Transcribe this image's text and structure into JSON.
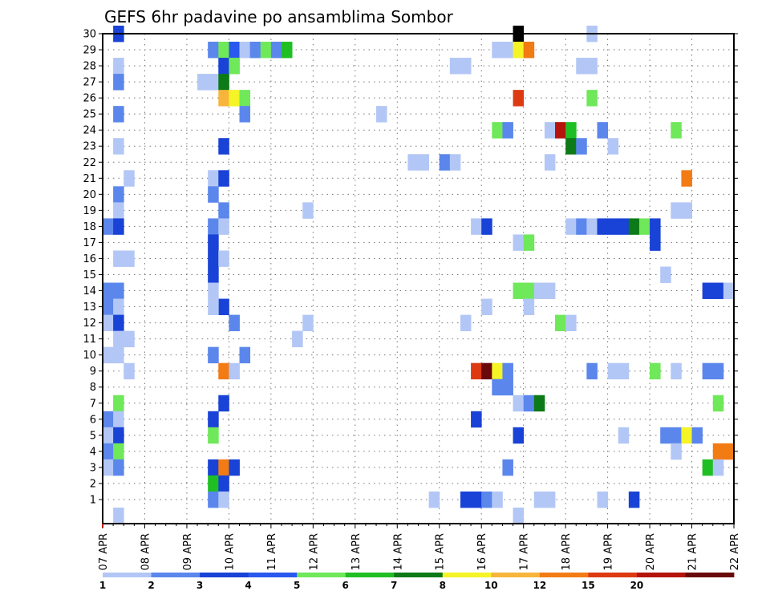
{
  "chart_data": {
    "type": "heatmap",
    "title": "GEFS 6hr padavine po ansamblima Sombor",
    "x_ticks": [
      "07 APR",
      "08 APR",
      "09 APR",
      "10 APR",
      "11 APR",
      "12 APR",
      "13 APR",
      "14 APR",
      "15 APR",
      "16 APR",
      "17 APR",
      "18 APR",
      "19 APR",
      "20 APR",
      "21 APR",
      "22 APR"
    ],
    "xlim": [
      "07 APR 00",
      "22 APR 00"
    ],
    "x_step": "6hr",
    "y_ticks": [
      1,
      2,
      3,
      4,
      5,
      6,
      7,
      8,
      9,
      10,
      11,
      12,
      13,
      14,
      15,
      16,
      17,
      18,
      19,
      20,
      21,
      22,
      23,
      24,
      25,
      26,
      27,
      28,
      29,
      30
    ],
    "ylim": [
      0,
      30
    ],
    "grid": true,
    "colorbar": {
      "labels": [
        "1",
        "2",
        "3",
        "4",
        "5",
        "6",
        "7",
        "8",
        "10",
        "12",
        "15",
        "20"
      ],
      "colors": [
        "#b3c7f6",
        "#5b87ec",
        "#1942d6",
        "#2a58ee",
        "#6fe85a",
        "#1fbf24",
        "#0c7a16",
        "#f4f427",
        "#f7b53b",
        "#f27b14",
        "#dd3a12",
        "#b4140c",
        "#6a0909"
      ]
    },
    "cells_format": "[x_start_day_offset, ensemble_member, color_class]",
    "cells": [
      [
        0.25,
        30,
        3
      ],
      [
        9.75,
        30,
        14
      ],
      [
        11.5,
        30,
        1
      ],
      [
        2.5,
        29,
        2
      ],
      [
        2.75,
        29,
        5
      ],
      [
        3.0,
        29,
        4
      ],
      [
        3.25,
        29,
        1
      ],
      [
        3.5,
        29,
        2
      ],
      [
        3.75,
        29,
        5
      ],
      [
        4.0,
        29,
        2
      ],
      [
        4.25,
        29,
        6
      ],
      [
        9.25,
        29,
        1
      ],
      [
        9.5,
        29,
        1
      ],
      [
        9.75,
        29,
        8
      ],
      [
        10.0,
        29,
        10
      ],
      [
        0.25,
        28,
        1
      ],
      [
        2.75,
        28,
        3
      ],
      [
        3.0,
        28,
        5
      ],
      [
        8.25,
        28,
        1
      ],
      [
        8.5,
        28,
        1
      ],
      [
        11.25,
        28,
        1
      ],
      [
        11.5,
        28,
        1
      ],
      [
        0.25,
        27,
        2
      ],
      [
        2.25,
        27,
        1
      ],
      [
        2.5,
        27,
        1
      ],
      [
        2.75,
        27,
        7
      ],
      [
        2.75,
        26,
        9
      ],
      [
        3.0,
        26,
        8
      ],
      [
        3.25,
        26,
        5
      ],
      [
        9.75,
        26,
        11
      ],
      [
        11.5,
        26,
        5
      ],
      [
        0.25,
        25,
        2
      ],
      [
        3.25,
        25,
        2
      ],
      [
        6.5,
        25,
        1
      ],
      [
        9.25,
        24,
        5
      ],
      [
        9.5,
        24,
        2
      ],
      [
        10.5,
        24,
        1
      ],
      [
        10.75,
        24,
        12
      ],
      [
        11.0,
        24,
        6
      ],
      [
        11.75,
        24,
        2
      ],
      [
        13.5,
        24,
        5
      ],
      [
        0.25,
        23,
        1
      ],
      [
        2.75,
        23,
        3
      ],
      [
        11.0,
        23,
        7
      ],
      [
        11.25,
        23,
        2
      ],
      [
        12.0,
        23,
        1
      ],
      [
        7.25,
        22,
        1
      ],
      [
        7.5,
        22,
        1
      ],
      [
        8.0,
        22,
        2
      ],
      [
        8.25,
        22,
        1
      ],
      [
        10.5,
        22,
        1
      ],
      [
        0.5,
        21,
        1
      ],
      [
        2.5,
        21,
        1
      ],
      [
        2.75,
        21,
        3
      ],
      [
        13.75,
        21,
        10
      ],
      [
        0.25,
        20,
        2
      ],
      [
        2.5,
        20,
        2
      ],
      [
        0.25,
        19,
        1
      ],
      [
        2.75,
        19,
        2
      ],
      [
        4.75,
        19,
        1
      ],
      [
        13.5,
        19,
        1
      ],
      [
        13.75,
        19,
        1
      ],
      [
        0.0,
        18,
        2
      ],
      [
        0.25,
        18,
        3
      ],
      [
        2.5,
        18,
        2
      ],
      [
        2.75,
        18,
        1
      ],
      [
        8.75,
        18,
        1
      ],
      [
        9.0,
        18,
        3
      ],
      [
        11.0,
        18,
        1
      ],
      [
        11.25,
        18,
        2
      ],
      [
        11.5,
        18,
        1
      ],
      [
        11.75,
        18,
        3
      ],
      [
        12.0,
        18,
        3
      ],
      [
        12.25,
        18,
        3
      ],
      [
        12.5,
        18,
        7
      ],
      [
        12.75,
        18,
        5
      ],
      [
        13.0,
        18,
        3
      ],
      [
        2.5,
        17,
        3
      ],
      [
        9.75,
        17,
        1
      ],
      [
        10.0,
        17,
        5
      ],
      [
        13.0,
        17,
        3
      ],
      [
        0.25,
        16,
        1
      ],
      [
        0.5,
        16,
        1
      ],
      [
        2.5,
        16,
        3
      ],
      [
        2.75,
        16,
        1
      ],
      [
        2.5,
        15,
        3
      ],
      [
        13.25,
        15,
        1
      ],
      [
        0.0,
        14,
        2
      ],
      [
        0.25,
        14,
        2
      ],
      [
        2.5,
        14,
        1
      ],
      [
        9.75,
        14,
        5
      ],
      [
        10.0,
        14,
        5
      ],
      [
        10.25,
        14,
        1
      ],
      [
        10.5,
        14,
        1
      ],
      [
        14.25,
        14,
        3
      ],
      [
        14.5,
        14,
        3
      ],
      [
        14.75,
        14,
        1
      ],
      [
        0.0,
        13,
        2
      ],
      [
        0.25,
        13,
        1
      ],
      [
        2.75,
        13,
        3
      ],
      [
        9.0,
        13,
        1
      ],
      [
        10.0,
        13,
        1
      ],
      [
        2.5,
        13,
        1
      ],
      [
        0.0,
        12,
        1
      ],
      [
        0.25,
        12,
        3
      ],
      [
        3.0,
        12,
        2
      ],
      [
        4.75,
        12,
        1
      ],
      [
        8.5,
        12,
        1
      ],
      [
        10.75,
        12,
        5
      ],
      [
        11.0,
        12,
        1
      ],
      [
        0.25,
        11,
        1
      ],
      [
        0.5,
        11,
        1
      ],
      [
        4.5,
        11,
        1
      ],
      [
        0.0,
        10,
        1
      ],
      [
        0.25,
        10,
        1
      ],
      [
        2.5,
        10,
        2
      ],
      [
        3.25,
        10,
        2
      ],
      [
        0.5,
        9,
        1
      ],
      [
        2.75,
        9,
        10
      ],
      [
        3.0,
        9,
        1
      ],
      [
        8.75,
        9,
        11
      ],
      [
        9.0,
        9,
        13
      ],
      [
        9.25,
        9,
        8
      ],
      [
        9.5,
        9,
        2
      ],
      [
        11.5,
        9,
        2
      ],
      [
        12.0,
        9,
        1
      ],
      [
        12.25,
        9,
        1
      ],
      [
        13.0,
        9,
        5
      ],
      [
        13.5,
        9,
        1
      ],
      [
        14.25,
        9,
        2
      ],
      [
        14.5,
        9,
        2
      ],
      [
        9.25,
        8,
        2
      ],
      [
        9.5,
        8,
        2
      ],
      [
        0.25,
        7,
        5
      ],
      [
        2.75,
        7,
        3
      ],
      [
        9.75,
        7,
        1
      ],
      [
        10.0,
        7,
        2
      ],
      [
        10.25,
        7,
        7
      ],
      [
        14.5,
        7,
        5
      ],
      [
        0.0,
        6,
        2
      ],
      [
        0.25,
        6,
        1
      ],
      [
        2.5,
        6,
        3
      ],
      [
        8.75,
        6,
        3
      ],
      [
        0.0,
        5,
        1
      ],
      [
        0.25,
        5,
        3
      ],
      [
        2.5,
        5,
        5
      ],
      [
        9.75,
        5,
        3
      ],
      [
        12.25,
        5,
        1
      ],
      [
        13.25,
        5,
        2
      ],
      [
        13.5,
        5,
        2
      ],
      [
        13.75,
        5,
        8
      ],
      [
        14.0,
        5,
        2
      ],
      [
        0.0,
        4,
        2
      ],
      [
        0.25,
        4,
        5
      ],
      [
        13.5,
        4,
        1
      ],
      [
        14.5,
        4,
        10
      ],
      [
        14.75,
        4,
        10
      ],
      [
        0.0,
        3,
        1
      ],
      [
        0.25,
        3,
        2
      ],
      [
        2.5,
        3,
        3
      ],
      [
        2.75,
        3,
        10
      ],
      [
        3.0,
        3,
        3
      ],
      [
        9.5,
        3,
        2
      ],
      [
        14.25,
        3,
        6
      ],
      [
        14.5,
        3,
        1
      ],
      [
        2.5,
        2,
        6
      ],
      [
        2.75,
        2,
        3
      ],
      [
        2.5,
        1,
        2
      ],
      [
        2.75,
        1,
        1
      ],
      [
        7.75,
        1,
        1
      ],
      [
        8.5,
        1,
        3
      ],
      [
        8.75,
        1,
        3
      ],
      [
        9.0,
        1,
        2
      ],
      [
        9.25,
        1,
        1
      ],
      [
        10.25,
        1,
        1
      ],
      [
        10.5,
        1,
        1
      ],
      [
        11.75,
        1,
        1
      ],
      [
        12.5,
        1,
        3
      ],
      [
        0.25,
        0,
        1
      ],
      [
        9.75,
        0,
        1
      ]
    ]
  }
}
